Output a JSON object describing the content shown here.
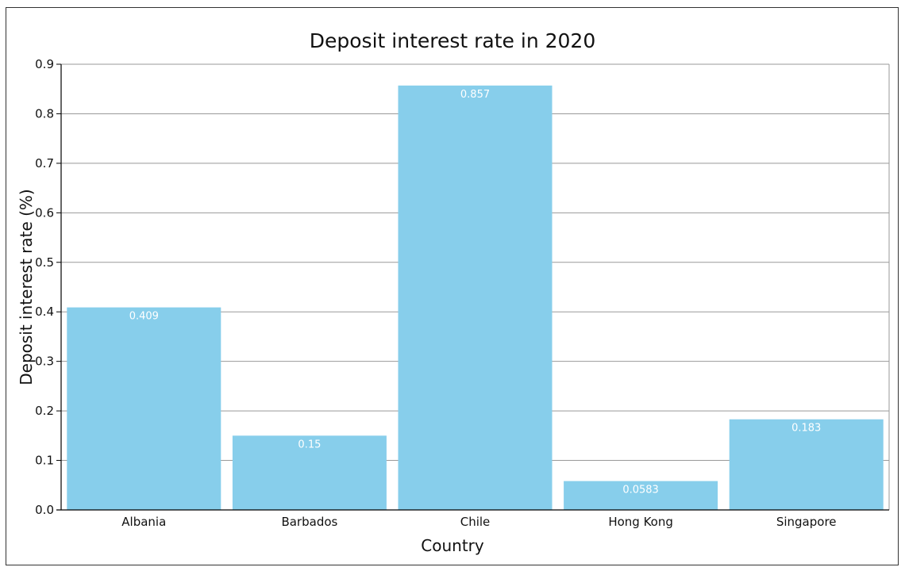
{
  "chart_data": {
    "type": "bar",
    "title": "Deposit interest rate in 2020",
    "xlabel": "Country",
    "ylabel": "Deposit interest rate (%)",
    "categories": [
      "Albania",
      "Barbados",
      "Chile",
      "Hong Kong",
      "Singapore"
    ],
    "values": [
      0.409,
      0.15,
      0.857,
      0.0583,
      0.183
    ],
    "data_labels": [
      "0.409",
      "0.15",
      "0.857",
      "0.0583",
      "0.183"
    ],
    "ylim": [
      0,
      0.9
    ],
    "yticks": [
      "0.0",
      "0.1",
      "0.2",
      "0.3",
      "0.4",
      "0.5",
      "0.6",
      "0.7",
      "0.8",
      "0.9"
    ],
    "grid": true,
    "legend": "none",
    "colors": {
      "bar": "#87CEEB",
      "grid": "#999999",
      "axis": "#000000",
      "frame": "#333333"
    }
  }
}
